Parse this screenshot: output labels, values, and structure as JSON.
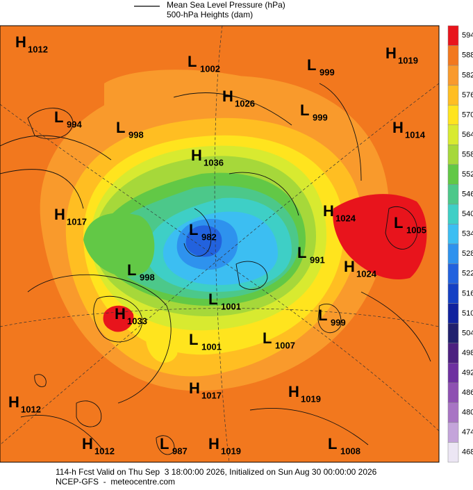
{
  "header": {
    "line1": "Mean Sea Level Pressure (hPa)",
    "line2": "500-hPa Heights (dam)"
  },
  "colorbar": {
    "values": [
      594,
      588,
      582,
      576,
      570,
      564,
      558,
      552,
      546,
      540,
      534,
      528,
      522,
      516,
      510,
      504,
      498,
      492,
      486,
      480,
      474,
      468
    ],
    "colors": [
      "#e8141c",
      "#f2781e",
      "#f99a2c",
      "#ffbe22",
      "#ffe41e",
      "#d8ea30",
      "#a6d83a",
      "#62c846",
      "#4cc88a",
      "#3ecfc6",
      "#3cbef2",
      "#2e92ee",
      "#2262de",
      "#1440c4",
      "#10229e",
      "#20206e",
      "#4c2080",
      "#6e30a0",
      "#8e50b2",
      "#a874c4",
      "#c4a4da",
      "#ece6f4"
    ]
  },
  "systems": [
    {
      "kind": "H",
      "value": 1012
    },
    {
      "kind": "L",
      "value": 1002
    },
    {
      "kind": "L",
      "value": 999
    },
    {
      "kind": "H",
      "value": 1019
    },
    {
      "kind": "H",
      "value": 1026
    },
    {
      "kind": "L",
      "value": 999
    },
    {
      "kind": "L",
      "value": 994
    },
    {
      "kind": "L",
      "value": 998
    },
    {
      "kind": "H",
      "value": 1014
    },
    {
      "kind": "H",
      "value": 1036
    },
    {
      "kind": "H",
      "value": 1017
    },
    {
      "kind": "H",
      "value": 1024
    },
    {
      "kind": "L",
      "value": 1005
    },
    {
      "kind": "L",
      "value": 982
    },
    {
      "kind": "L",
      "value": 991
    },
    {
      "kind": "L",
      "value": 998
    },
    {
      "kind": "H",
      "value": 1024
    },
    {
      "kind": "L",
      "value": 1001
    },
    {
      "kind": "H",
      "value": 1033
    },
    {
      "kind": "L",
      "value": 999
    },
    {
      "kind": "L",
      "value": 1001
    },
    {
      "kind": "L",
      "value": 1007
    },
    {
      "kind": "H",
      "value": 1017
    },
    {
      "kind": "H",
      "value": 1019
    },
    {
      "kind": "H",
      "value": 1012
    },
    {
      "kind": "H",
      "value": 1012
    },
    {
      "kind": "L",
      "value": 987
    },
    {
      "kind": "H",
      "value": 1019
    },
    {
      "kind": "L",
      "value": 1008
    }
  ],
  "footer": {
    "line1": "114-h Fcst Valid on Thu Sep  3 18:00:00 2026, Initialized on Sun Aug 30 00:00:00 2026",
    "line2": "NCEP-GFS  -  meteocentre.com"
  }
}
